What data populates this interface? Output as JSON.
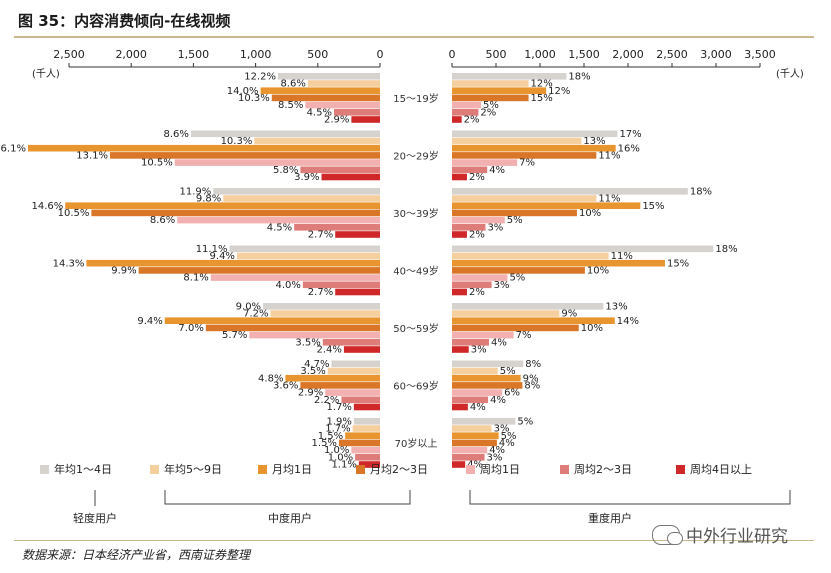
{
  "figure": {
    "title": "图 35：内容消费倾向-在线视频",
    "source": "数据来源：日本经济产业省，西南证券整理",
    "watermark": "中外行业研究"
  },
  "chart_data": {
    "type": "bar",
    "layout": "butterfly-horizontal",
    "unit_label": "(千人)",
    "left_axis": {
      "ticks": [
        "2,500",
        "2,000",
        "1,500",
        "1,000",
        "500",
        "0"
      ],
      "range": [
        2500,
        0
      ]
    },
    "right_axis": {
      "ticks": [
        "0",
        "500",
        "1,000",
        "1,500",
        "2,000",
        "2,500",
        "3,000",
        "3,500"
      ],
      "range": [
        0,
        3500
      ]
    },
    "categories": [
      "15～19岁",
      "20～29岁",
      "30～39岁",
      "40～49岁",
      "50～59岁",
      "60～69岁",
      "70岁以上"
    ],
    "series": [
      {
        "name": "年均1～4日",
        "color": "#d6d3ce",
        "left_values": [
          820,
          1520,
          1340,
          1210,
          940,
          390,
          210
        ],
        "left_labels": [
          "12.2%",
          "8.6%",
          "11.9%",
          "11.1%",
          "9.0%",
          "4.7%",
          "1.9%"
        ],
        "right_values": [
          1300,
          1880,
          2680,
          2970,
          1720,
          810,
          720
        ],
        "right_labels": [
          "18%",
          "17%",
          "18%",
          "18%",
          "13%",
          "8%",
          "5%"
        ]
      },
      {
        "name": "年均5～9日",
        "color": "#f6cf9f",
        "left_values": [
          580,
          1010,
          1260,
          1150,
          880,
          420,
          220
        ],
        "left_labels": [
          "8.6%",
          "10.3%",
          "9.8%",
          "9.4%",
          "7.2%",
          "3.5%",
          "1.7%"
        ],
        "right_values": [
          870,
          1470,
          1640,
          1780,
          1220,
          520,
          450
        ],
        "right_labels": [
          "12%",
          "13%",
          "11%",
          "11%",
          "9%",
          "5%",
          "3%"
        ]
      },
      {
        "name": "月均1日",
        "color": "#e8942f",
        "left_values": [
          960,
          2830,
          2530,
          2360,
          1730,
          760,
          280
        ],
        "left_labels": [
          "14.0%",
          "16.1%",
          "14.6%",
          "14.3%",
          "9.4%",
          "4.8%",
          "1.5%"
        ],
        "right_values": [
          1070,
          1860,
          2140,
          2420,
          1850,
          780,
          530
        ],
        "right_labels": [
          "12%",
          "16%",
          "15%",
          "15%",
          "14%",
          "9%",
          "5%"
        ]
      },
      {
        "name": "月均2～3日",
        "color": "#d97627",
        "left_values": [
          870,
          2170,
          2320,
          1940,
          1400,
          640,
          330
        ],
        "left_labels": [
          "10.3%",
          "13.1%",
          "10.5%",
          "9.9%",
          "7.0%",
          "3.6%",
          "1.5%"
        ],
        "right_values": [
          870,
          1640,
          1420,
          1510,
          1440,
          800,
          510
        ],
        "right_labels": [
          "15%",
          "11%",
          "10%",
          "10%",
          "10%",
          "8%",
          "4%"
        ]
      },
      {
        "name": "周均1日",
        "color": "#f2b0b0",
        "left_values": [
          600,
          1650,
          1630,
          1360,
          1050,
          440,
          230
        ],
        "left_labels": [
          "8.5%",
          "10.5%",
          "8.6%",
          "8.1%",
          "5.7%",
          "2.9%",
          "1.0%"
        ],
        "right_values": [
          330,
          740,
          600,
          630,
          700,
          570,
          400
        ],
        "right_labels": [
          "5%",
          "7%",
          "5%",
          "5%",
          "7%",
          "6%",
          "4%"
        ]
      },
      {
        "name": "周均2～3日",
        "color": "#de7c7a",
        "left_values": [
          370,
          640,
          690,
          620,
          460,
          310,
          200
        ],
        "left_labels": [
          "4.5%",
          "5.8%",
          "4.5%",
          "4.0%",
          "3.5%",
          "2.2%",
          "1.0%"
        ],
        "right_values": [
          300,
          400,
          380,
          450,
          420,
          410,
          370
        ],
        "right_labels": [
          "2%",
          "4%",
          "3%",
          "3%",
          "4%",
          "4%",
          "3%"
        ]
      },
      {
        "name": "周均4日以上",
        "color": "#d02828",
        "left_values": [
          230,
          470,
          360,
          360,
          290,
          210,
          170
        ],
        "left_labels": [
          "2.9%",
          "3.9%",
          "2.7%",
          "2.7%",
          "2.4%",
          "1.7%",
          "1.1%"
        ],
        "right_values": [
          110,
          170,
          170,
          170,
          190,
          180,
          150
        ],
        "right_labels": [
          "2%",
          "2%",
          "2%",
          "2%",
          "3%",
          "4%",
          "4%"
        ]
      }
    ],
    "group_labels": [
      "轻度用户",
      "中度用户",
      "重度用户"
    ]
  }
}
